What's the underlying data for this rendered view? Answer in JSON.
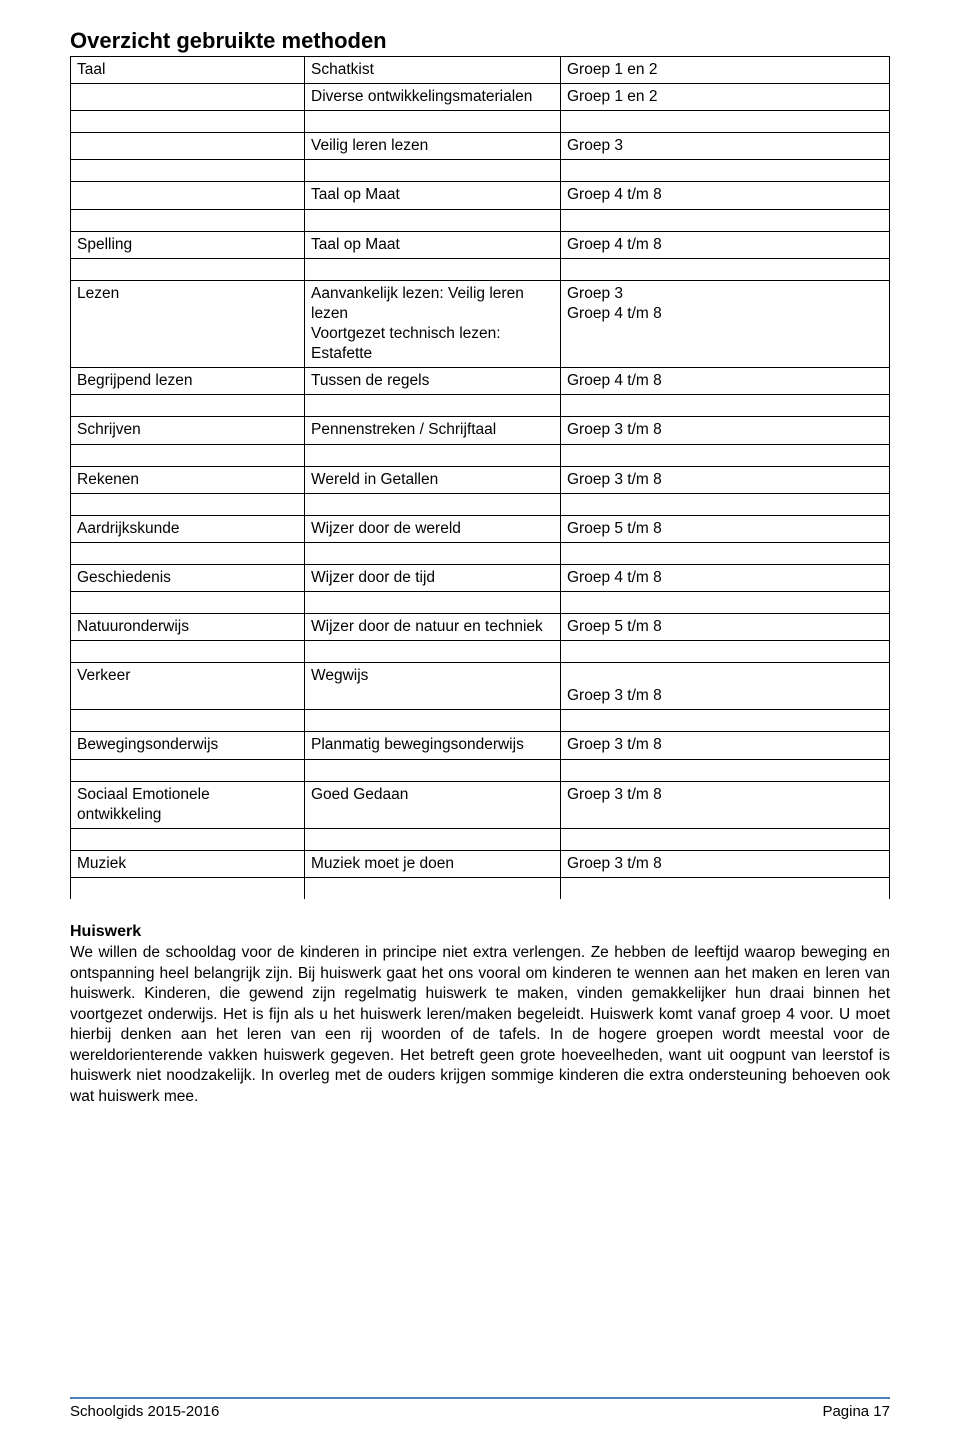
{
  "title": "Overzicht gebruikte methoden",
  "table": {
    "rows": [
      {
        "c1": "Taal",
        "c2": "Schatkist",
        "c3": "Groep 1 en 2"
      },
      {
        "c1": "",
        "c2": "Diverse ontwikkelingsmaterialen",
        "c3": "Groep 1 en 2"
      },
      {
        "gap": true
      },
      {
        "c1": "",
        "c2": "Veilig leren lezen",
        "c3": "Groep 3"
      },
      {
        "gap": true
      },
      {
        "c1": "",
        "c2": "Taal op Maat",
        "c3": "Groep 4 t/m 8"
      },
      {
        "gap": true
      },
      {
        "c1": "Spelling",
        "c2": "Taal op Maat",
        "c3": "Groep 4 t/m 8"
      },
      {
        "gap": true
      },
      {
        "c1": "Lezen",
        "c2": "Aanvankelijk lezen: Veilig leren lezen\nVoortgezet technisch lezen:\nEstafette",
        "c3": "Groep 3\nGroep 4 t/m 8"
      },
      {
        "c1": "Begrijpend lezen",
        "c2": "Tussen de regels",
        "c3": "Groep 4 t/m 8"
      },
      {
        "gap": true
      },
      {
        "c1": "Schrijven",
        "c2": "Pennenstreken / Schrijftaal",
        "c3": "Groep 3 t/m 8"
      },
      {
        "gap": true
      },
      {
        "c1": "Rekenen",
        "c2": "Wereld in Getallen",
        "c3": "Groep 3 t/m 8"
      },
      {
        "gap": true
      },
      {
        "c1": "Aardrijkskunde",
        "c2": "Wijzer door de wereld",
        "c3": "Groep 5 t/m 8"
      },
      {
        "gap": true
      },
      {
        "c1": "Geschiedenis",
        "c2": "Wijzer door de tijd",
        "c3": "Groep 4 t/m 8"
      },
      {
        "gap": true
      },
      {
        "c1": "Natuuronderwijs",
        "c2": "Wijzer door de natuur en techniek",
        "c3": "Groep 5 t/m 8"
      },
      {
        "gap": true
      },
      {
        "c1": "Verkeer",
        "c2": "Wegwijs",
        "c3": "\nGroep 3 t/m 8"
      },
      {
        "gap": true
      },
      {
        "c1": "Bewegingsonderwijs",
        "c2": "Planmatig bewegingsonderwijs",
        "c3": "Groep 3 t/m 8"
      },
      {
        "gap": true
      },
      {
        "c1": "Sociaal Emotionele ontwikkeling",
        "c2": "Goed Gedaan",
        "c3": "Groep 3 t/m 8"
      },
      {
        "gap": true
      },
      {
        "c1": "Muziek",
        "c2": "Muziek moet je doen",
        "c3": "Groep 3 t/m 8"
      },
      {
        "gap": true
      }
    ]
  },
  "subsection": {
    "heading": "Huiswerk",
    "body": "We willen de schooldag voor de kinderen in principe niet extra verlengen. Ze hebben de leeftijd waarop beweging en ontspanning heel belangrijk zijn. Bij huiswerk gaat het ons vooral om kinderen te wennen aan het maken en leren van huiswerk. Kinderen, die gewend zijn regelmatig huiswerk te maken, vinden gemakkelijker hun draai binnen het voortgezet onderwijs. Het is fijn als u het huiswerk leren/maken begeleidt. Huiswerk komt vanaf groep 4 voor. U moet hierbij denken aan het leren van een rij woorden of de tafels. In de hogere groepen wordt meestal voor de wereldorienterende vakken huiswerk gegeven. Het betreft geen grote hoeveelheden, want uit oogpunt van leerstof is huiswerk niet noodzakelijk. In overleg met de ouders krijgen sommige kinderen die extra ondersteuning behoeven ook wat huiswerk mee."
  },
  "footer": {
    "left": "Schoolgids 2015-2016",
    "right": "Pagina 17"
  },
  "colors": {
    "text": "#000000",
    "background": "#ffffff",
    "footer_rule": "#4f81bd",
    "table_border": "#000000"
  },
  "typography": {
    "title_size_pt": 16,
    "body_size_pt": 11.5,
    "font_family": "Arial"
  }
}
